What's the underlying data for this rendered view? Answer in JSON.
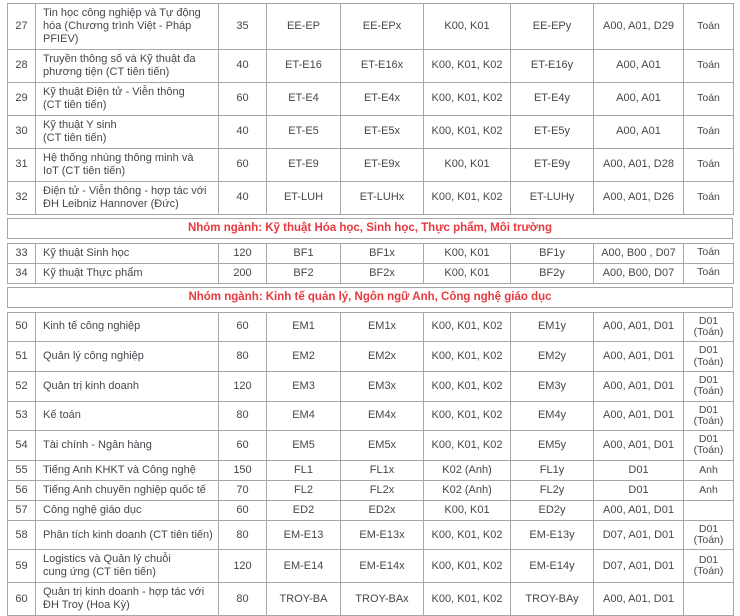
{
  "colors": {
    "body_text": "#45474c",
    "group_header_text": "#e8393e",
    "grid_border": "#a6a6a6",
    "background": "#ffffff"
  },
  "sections": [
    {
      "type": "rows",
      "rows": [
        {
          "no": "27",
          "name": "Tin học công nghiệp và Tự động\nhóa (Chương trình Việt - Pháp\nPFIEV)",
          "quota": "35",
          "code": "EE-EP",
          "code_x": "EE-EPx",
          "k_groups": "K00, K01",
          "code_y": "EE-EPy",
          "a_groups": "A00, A01, D29",
          "subject": "Toán"
        },
        {
          "no": "28",
          "name": "Truyền thông số và Kỹ thuật đa\nphương tiện (CT tiên tiến)",
          "quota": "40",
          "code": "ET-E16",
          "code_x": "ET-E16x",
          "k_groups": "K00, K01, K02",
          "code_y": "ET-E16y",
          "a_groups": "A00, A01",
          "subject": "Toán"
        },
        {
          "no": "29",
          "name": "Kỹ thuật Điện tử - Viễn thông\n(CT tiên tiến)",
          "quota": "60",
          "code": "ET-E4",
          "code_x": "ET-E4x",
          "k_groups": "K00, K01, K02",
          "code_y": "ET-E4y",
          "a_groups": "A00, A01",
          "subject": "Toán"
        },
        {
          "no": "30",
          "name": "Kỹ thuật Y sinh\n(CT tiên tiến)",
          "quota": "40",
          "code": "ET-E5",
          "code_x": "ET-E5x",
          "k_groups": "K00, K01, K02",
          "code_y": "ET-E5y",
          "a_groups": "A00, A01",
          "subject": "Toán"
        },
        {
          "no": "31",
          "name": "Hệ thống nhúng thông minh và\nIoT (CT tiên tiến)",
          "quota": "60",
          "code": "ET-E9",
          "code_x": "ET-E9x",
          "k_groups": "K00, K01",
          "code_y": "ET-E9y",
          "a_groups": "A00, A01, D28",
          "subject": "Toán"
        },
        {
          "no": "32",
          "name": "Điện tử - Viễn thông - hợp tác với\nĐH Leibniz Hannover (Đức)",
          "quota": "40",
          "code": "ET-LUH",
          "code_x": "ET-LUHx",
          "k_groups": "K00, K01, K02",
          "code_y": "ET-LUHy",
          "a_groups": "A00, A01, D26",
          "subject": "Toán"
        }
      ]
    },
    {
      "type": "group_header",
      "label": "Nhóm ngành: Kỹ thuật Hóa học, Sinh học, Thực phẩm, Môi trường"
    },
    {
      "type": "rows",
      "rows": [
        {
          "no": "33",
          "name": "Kỹ thuật Sinh học",
          "quota": "120",
          "code": "BF1",
          "code_x": "BF1x",
          "k_groups": "K00, K01",
          "code_y": "BF1y",
          "a_groups": "A00, B00 , D07",
          "subject": "Toán"
        },
        {
          "no": "34",
          "name": "Kỹ thuật Thực phẩm",
          "quota": "200",
          "code": "BF2",
          "code_x": "BF2x",
          "k_groups": "K00, K01",
          "code_y": "BF2y",
          "a_groups": "A00, B00, D07",
          "subject": "Toán"
        }
      ]
    },
    {
      "type": "group_header",
      "label": "Nhóm ngành: Kinh tế quản lý, Ngôn ngữ Anh, Công nghệ giáo dục"
    },
    {
      "type": "rows",
      "rows": [
        {
          "no": "50",
          "name": "Kinh tế công nghiệp",
          "quota": "60",
          "code": "EM1",
          "code_x": "EM1x",
          "k_groups": "K00, K01, K02",
          "code_y": "EM1y",
          "a_groups": "A00, A01, D01",
          "subject": "D01\n(Toán)"
        },
        {
          "no": "51",
          "name": "Quản lý công nghiệp",
          "quota": "80",
          "code": "EM2",
          "code_x": "EM2x",
          "k_groups": "K00, K01, K02",
          "code_y": "EM2y",
          "a_groups": "A00, A01, D01",
          "subject": "D01\n(Toán)"
        },
        {
          "no": "52",
          "name": "Quản trị kinh doanh",
          "quota": "120",
          "code": "EM3",
          "code_x": "EM3x",
          "k_groups": "K00, K01, K02",
          "code_y": "EM3y",
          "a_groups": "A00, A01, D01",
          "subject": "D01\n(Toán)"
        },
        {
          "no": "53",
          "name": "Kế toán",
          "quota": "80",
          "code": "EM4",
          "code_x": "EM4x",
          "k_groups": "K00, K01, K02",
          "code_y": "EM4y",
          "a_groups": "A00, A01, D01",
          "subject": "D01\n(Toán)"
        },
        {
          "no": "54",
          "name": "Tài chính - Ngân hàng",
          "quota": "60",
          "code": "EM5",
          "code_x": "EM5x",
          "k_groups": "K00, K01, K02",
          "code_y": "EM5y",
          "a_groups": "A00, A01, D01",
          "subject": "D01\n(Toán)"
        },
        {
          "no": "55",
          "name": "Tiếng Anh KHKT và Công nghệ",
          "quota": "150",
          "code": "FL1",
          "code_x": "FL1x",
          "k_groups": "K02 (Anh)",
          "code_y": "FL1y",
          "a_groups": "D01",
          "subject": "Anh"
        },
        {
          "no": "56",
          "name": "Tiếng Anh chuyên nghiệp quốc tế",
          "quota": "70",
          "code": "FL2",
          "code_x": "FL2x",
          "k_groups": "K02 (Anh)",
          "code_y": "FL2y",
          "a_groups": "D01",
          "subject": "Anh"
        },
        {
          "no": "57",
          "name": "Công nghệ giáo dục",
          "quota": "60",
          "code": "ED2",
          "code_x": "ED2x",
          "k_groups": "K00, K01",
          "code_y": "ED2y",
          "a_groups": "A00, A01, D01",
          "subject": ""
        },
        {
          "no": "58",
          "name": "Phân tích kinh doanh (CT tiên tiến)",
          "quota": "80",
          "code": "EM-E13",
          "code_x": "EM-E13x",
          "k_groups": "K00, K01, K02",
          "code_y": "EM-E13y",
          "a_groups": "D07, A01, D01",
          "subject": "D01\n(Toán)"
        },
        {
          "no": "59",
          "name": "Logistics và Quản lý chuỗi\ncung ứng (CT tiên tiến)",
          "quota": "120",
          "code": "EM-E14",
          "code_x": "EM-E14x",
          "k_groups": "K00, K01, K02",
          "code_y": "EM-E14y",
          "a_groups": "D07, A01, D01",
          "subject": "D01\n(Toán)"
        },
        {
          "no": "60",
          "name": "Quản trị kinh doanh - hợp tác với\nĐH Troy (Hoa Kỳ)",
          "quota": "80",
          "code": "TROY-BA",
          "code_x": "TROY-BAx",
          "k_groups": "K00, K01, K02",
          "code_y": "TROY-BAy",
          "a_groups": "A00, A01, D01",
          "subject": ""
        }
      ]
    }
  ]
}
